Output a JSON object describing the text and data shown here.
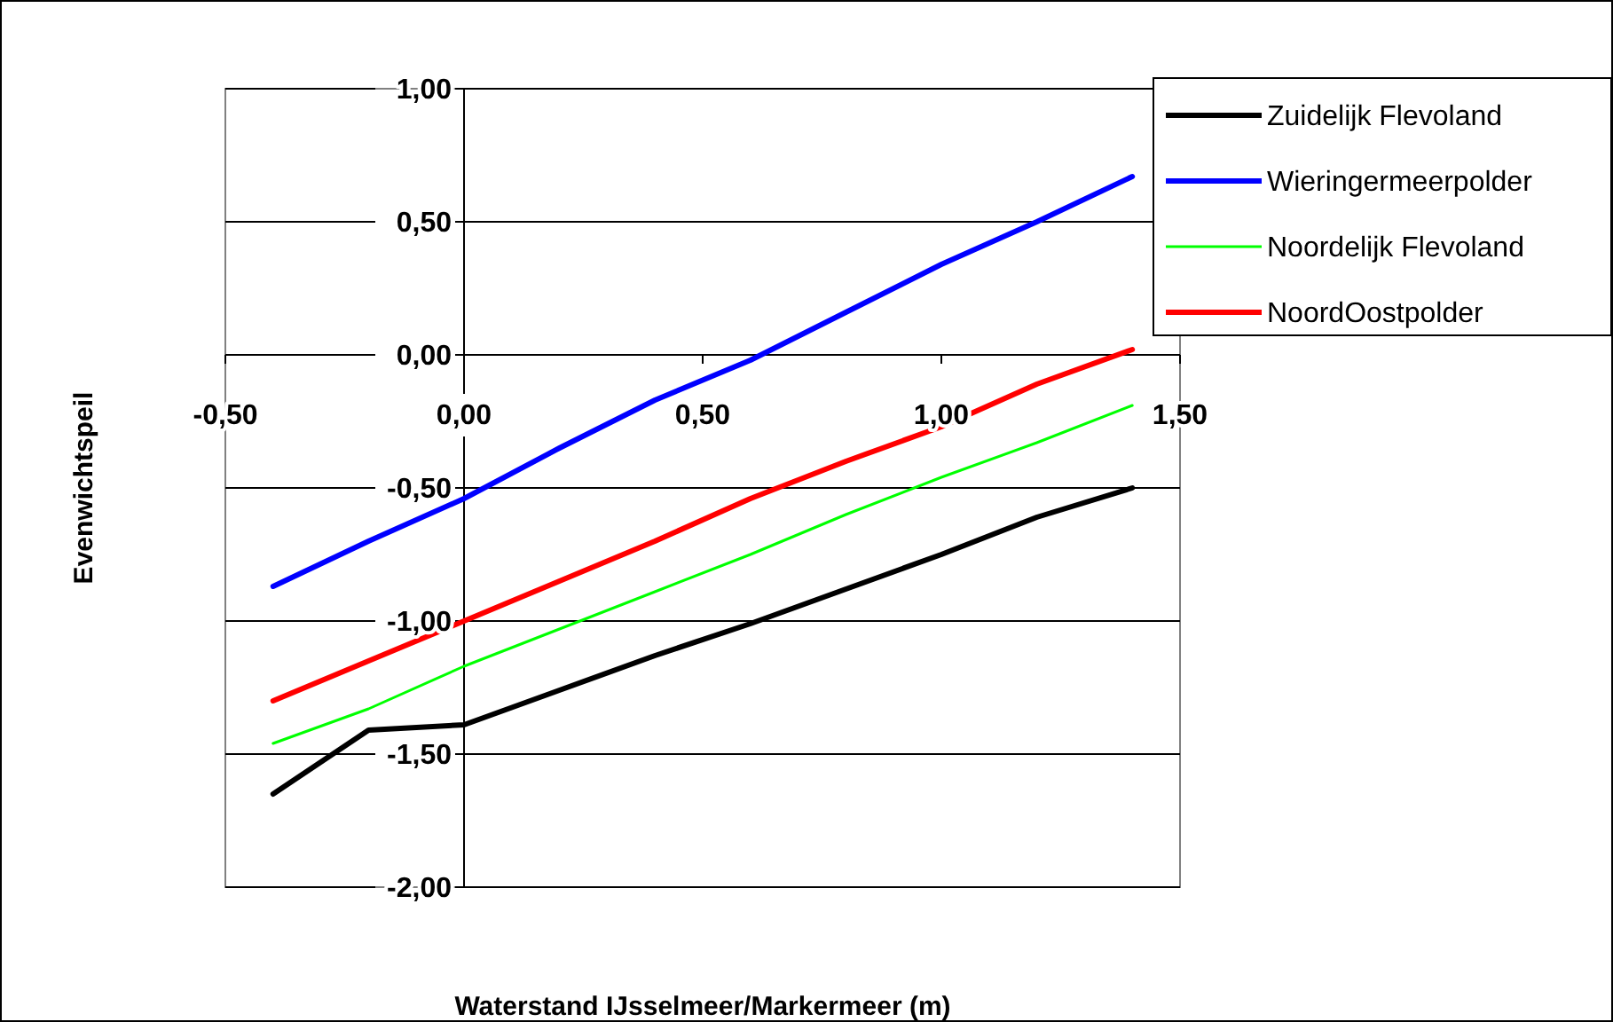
{
  "chart_data": {
    "type": "line",
    "xlabel": "Waterstand IJsselmeer/Markermeer (m)",
    "ylabel": "Evenwichtspeil",
    "x": [
      -0.4,
      -0.2,
      0,
      0.2,
      0.4,
      0.6,
      0.8,
      1.0,
      1.2,
      1.4
    ],
    "series": [
      {
        "name": "Zuidelijk Flevoland",
        "color": "#000000",
        "values": [
          -1.65,
          -1.41,
          -1.39,
          -1.26,
          -1.13,
          -1.01,
          -0.88,
          -0.75,
          -0.61,
          -0.5
        ]
      },
      {
        "name": "Wieringermeerpolder",
        "color": "#0000ff",
        "values": [
          -0.87,
          -0.7,
          -0.54,
          -0.35,
          -0.17,
          -0.02,
          0.16,
          0.34,
          0.5,
          0.67
        ]
      },
      {
        "name": "Noordelijk Flevoland",
        "color": "#00ff00",
        "values": [
          -1.46,
          -1.33,
          -1.17,
          -1.03,
          -0.89,
          -0.75,
          -0.6,
          -0.46,
          -0.33,
          -0.19
        ]
      },
      {
        "name": "NoordOostpolder",
        "color": "#ff0000",
        "values": [
          -1.3,
          -1.15,
          -1.0,
          -0.85,
          -0.7,
          -0.54,
          -0.4,
          -0.27,
          -0.11,
          0.02
        ]
      }
    ],
    "xlim": [
      -0.5,
      1.5
    ],
    "xticks": [
      {
        "value": -0.5,
        "label": "-0,50"
      },
      {
        "value": 0,
        "label": "0,00"
      },
      {
        "value": 0.5,
        "label": "0,50"
      },
      {
        "value": 1,
        "label": "1,00"
      },
      {
        "value": 1.5,
        "label": "1,50"
      }
    ],
    "ylim": [
      -2,
      1
    ],
    "yticks": [
      {
        "value": -2,
        "label": "-2,00"
      },
      {
        "value": -1.5,
        "label": "-1,50"
      },
      {
        "value": -1,
        "label": "-1,00"
      },
      {
        "value": -0.5,
        "label": "-0,50"
      },
      {
        "value": 0,
        "label": "0,00"
      },
      {
        "value": 0.5,
        "label": "0,50"
      },
      {
        "value": 1,
        "label": "1,00"
      }
    ],
    "grid": "y",
    "legend": "top right",
    "marker": "none",
    "line_style": "solid"
  }
}
